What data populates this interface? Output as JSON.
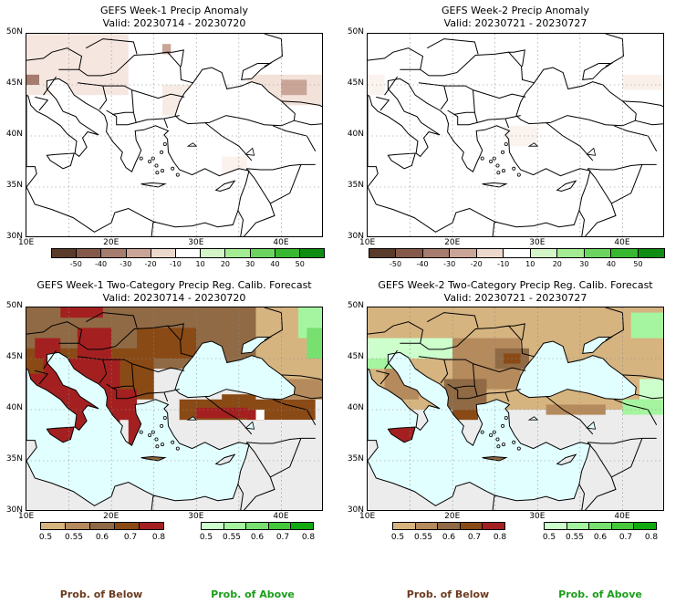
{
  "panels": {
    "p1": {
      "title": "GEFS Week-1 Precip Anomaly",
      "valid": "Valid: 20230714 - 20230720"
    },
    "p2": {
      "title": "GEFS Week-2 Precip Anomaly",
      "valid": "Valid: 20230721 - 20230727"
    },
    "p3": {
      "title": "GEFS Week-1 Two-Category Precip Reg. Calib. Forecast",
      "valid": "Valid: 20230714 - 20230720"
    },
    "p4": {
      "title": "GEFS Week-2 Two-Category Precip Reg. Calib. Forecast",
      "valid": "Valid: 20230721 - 20230727"
    }
  },
  "axes": {
    "lat_labels": [
      "50N",
      "45N",
      "40N",
      "35N",
      "30N"
    ],
    "lon_labels": [
      "10E",
      "20E",
      "30E",
      "40E"
    ]
  },
  "anomaly_scale": {
    "ticks": [
      "-50",
      "-40",
      "-30",
      "-20",
      "-10",
      "10",
      "20",
      "30",
      "40",
      "50"
    ],
    "colors": [
      "#5a3a2a",
      "#85594a",
      "#a67c6e",
      "#c9a597",
      "#ecd8cc",
      "#ffffff",
      "#d4f5c8",
      "#a4ec94",
      "#6bd560",
      "#38b830",
      "#0f8d12"
    ]
  },
  "prob_scale": {
    "below_ticks": [
      "0.5",
      "0.55",
      "0.6",
      "0.7",
      "0.8"
    ],
    "below_colors": [
      "#d6b480",
      "#b58a5c",
      "#906a45",
      "#8a4a16",
      "#a42020"
    ],
    "above_ticks": [
      "0.5",
      "0.55",
      "0.6",
      "0.7",
      "0.8"
    ],
    "above_colors": [
      "#ccffcc",
      "#a5f5a0",
      "#77e070",
      "#45c83a",
      "#10aa10"
    ]
  },
  "footer": {
    "below": "Prob. of Below",
    "above": "Prob. of Above",
    "below_color": "#6b3a1f",
    "above_color": "#1a9e1a"
  },
  "fills": {
    "sea": "#e2ffff",
    "no_signal": "#ececec"
  }
}
